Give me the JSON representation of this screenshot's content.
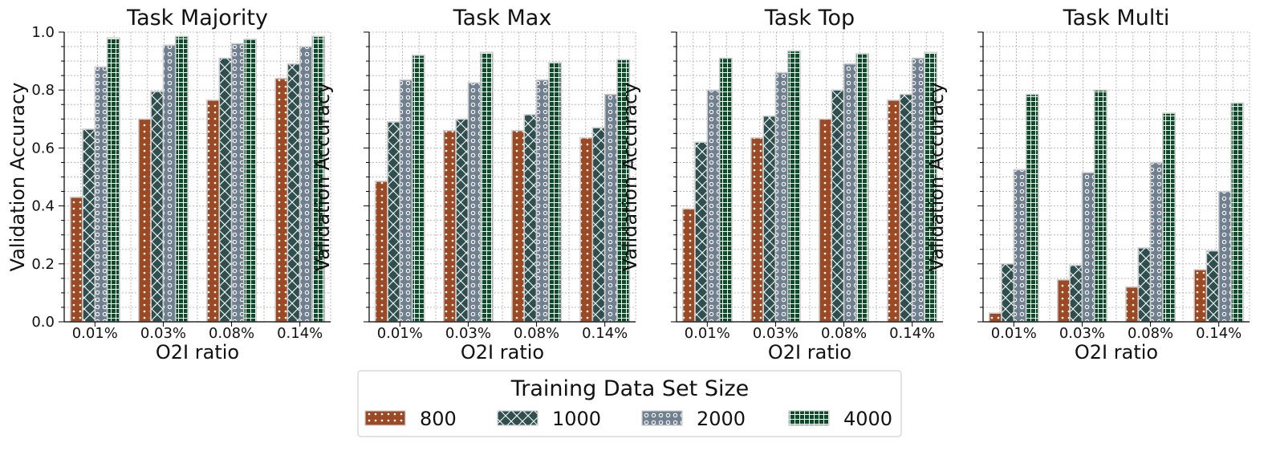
{
  "chart_data": [
    {
      "type": "bar",
      "title": "Task Majority",
      "xlabel": "O2I ratio",
      "ylabel": "Validation Accuracy",
      "categories": [
        "0.01%",
        "0.03%",
        "0.08%",
        "0.14%"
      ],
      "ylim": [
        0,
        1
      ],
      "yticks": [
        "0.0",
        "0.2",
        "0.4",
        "0.6",
        "0.8",
        "1.0"
      ],
      "series": [
        {
          "name": "800",
          "values": [
            0.43,
            0.7,
            0.765,
            0.84
          ]
        },
        {
          "name": "1000",
          "values": [
            0.665,
            0.795,
            0.91,
            0.89
          ]
        },
        {
          "name": "2000",
          "values": [
            0.88,
            0.955,
            0.96,
            0.95
          ]
        },
        {
          "name": "4000",
          "values": [
            0.98,
            0.985,
            0.975,
            0.985
          ]
        }
      ]
    },
    {
      "type": "bar",
      "title": "Task Max",
      "xlabel": "O2I ratio",
      "ylabel": "Validation Accuracy",
      "categories": [
        "0.01%",
        "0.03%",
        "0.08%",
        "0.14%"
      ],
      "ylim": [
        0,
        1
      ],
      "series": [
        {
          "name": "800",
          "values": [
            0.485,
            0.66,
            0.66,
            0.635
          ]
        },
        {
          "name": "1000",
          "values": [
            0.69,
            0.7,
            0.715,
            0.67
          ]
        },
        {
          "name": "2000",
          "values": [
            0.835,
            0.825,
            0.835,
            0.785
          ]
        },
        {
          "name": "4000",
          "values": [
            0.92,
            0.93,
            0.895,
            0.905
          ]
        }
      ]
    },
    {
      "type": "bar",
      "title": "Task Top",
      "xlabel": "O2I ratio",
      "ylabel": "Validation Accuracy",
      "categories": [
        "0.01%",
        "0.03%",
        "0.08%",
        "0.14%"
      ],
      "ylim": [
        0,
        1
      ],
      "series": [
        {
          "name": "800",
          "values": [
            0.39,
            0.635,
            0.7,
            0.765
          ]
        },
        {
          "name": "1000",
          "values": [
            0.62,
            0.71,
            0.8,
            0.785
          ]
        },
        {
          "name": "2000",
          "values": [
            0.8,
            0.86,
            0.89,
            0.91
          ]
        },
        {
          "name": "4000",
          "values": [
            0.91,
            0.935,
            0.925,
            0.93
          ]
        }
      ]
    },
    {
      "type": "bar",
      "title": "Task Multi",
      "xlabel": "O2I ratio",
      "ylabel": "Validation Accuracy",
      "categories": [
        "0.01%",
        "0.03%",
        "0.08%",
        "0.14%"
      ],
      "ylim": [
        0,
        1
      ],
      "series": [
        {
          "name": "800",
          "values": [
            0.03,
            0.145,
            0.12,
            0.18
          ]
        },
        {
          "name": "1000",
          "values": [
            0.2,
            0.195,
            0.255,
            0.245
          ]
        },
        {
          "name": "2000",
          "values": [
            0.525,
            0.515,
            0.55,
            0.45
          ]
        },
        {
          "name": "4000",
          "values": [
            0.785,
            0.8,
            0.72,
            0.755
          ]
        }
      ]
    }
  ],
  "legend": {
    "title": "Training Data Set Size",
    "placement": "bottom-center",
    "items": [
      "800",
      "1000",
      "2000",
      "4000"
    ]
  },
  "colors": {
    "800": "#9c4a26",
    "1000": "#2f4f4f",
    "2000": "#708090",
    "4000": "#0b4d28"
  },
  "grid": true
}
